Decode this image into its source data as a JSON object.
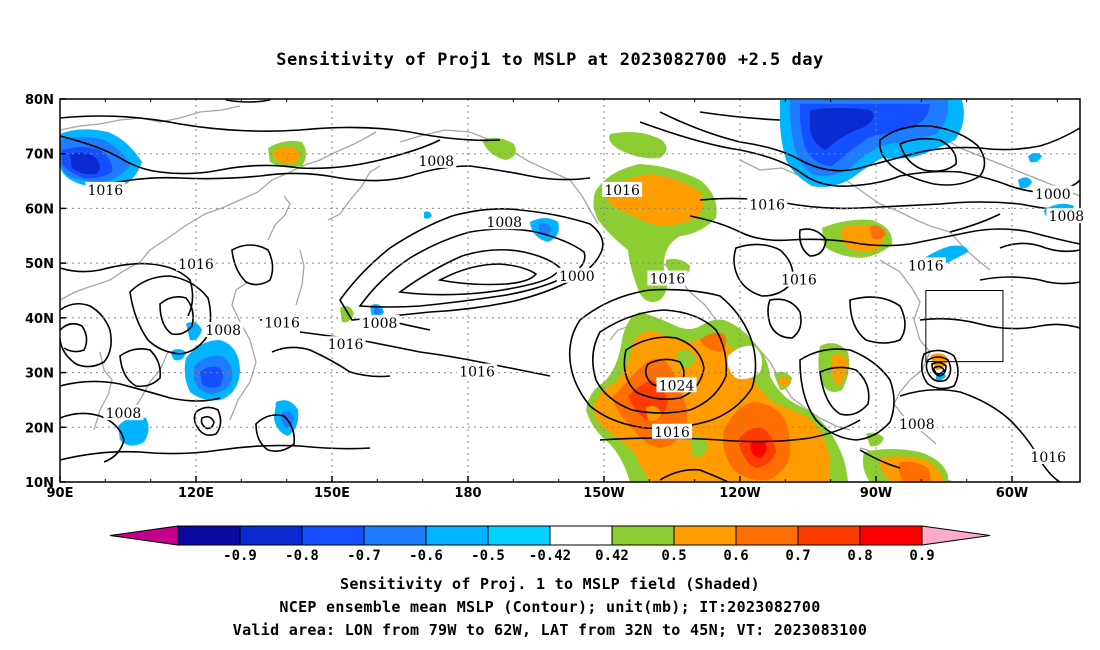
{
  "title": "Sensitivity of Proj1 to MSLP at 2023082700 +2.5 day",
  "axes": {
    "lon_ticks": [
      "90E",
      "120E",
      "150E",
      "180",
      "150W",
      "120W",
      "90W",
      "60W"
    ],
    "lat_ticks": [
      "80N",
      "70N",
      "60N",
      "50N",
      "40N",
      "30N",
      "20N",
      "10N"
    ],
    "lon_range": [
      90,
      315
    ],
    "lat_range": [
      10,
      80
    ],
    "grid": "dotted"
  },
  "contour_labels": [
    {
      "text": "1008",
      "lon": 173,
      "lat": 68.5
    },
    {
      "text": "1016",
      "lon": 100,
      "lat": 63.2
    },
    {
      "text": "1016",
      "lon": 214,
      "lat": 63.2
    },
    {
      "text": "1016",
      "lon": 246,
      "lat": 60.5
    },
    {
      "text": "1000",
      "lon": 309,
      "lat": 62.5
    },
    {
      "text": "1008",
      "lon": 312,
      "lat": 58.4
    },
    {
      "text": "1008",
      "lon": 188,
      "lat": 57.3
    },
    {
      "text": "1016",
      "lon": 120,
      "lat": 49.7
    },
    {
      "text": "1000",
      "lon": 204,
      "lat": 47.5
    },
    {
      "text": "1016",
      "lon": 224,
      "lat": 47.0
    },
    {
      "text": "1016",
      "lon": 253,
      "lat": 46.8
    },
    {
      "text": "1016",
      "lon": 281,
      "lat": 49.4
    },
    {
      "text": "1016",
      "lon": 139,
      "lat": 39.0
    },
    {
      "text": "1008",
      "lon": 160.5,
      "lat": 38.9
    },
    {
      "text": "1008",
      "lon": 126,
      "lat": 37.6
    },
    {
      "text": "1016",
      "lon": 153,
      "lat": 35.0
    },
    {
      "text": "1016",
      "lon": 182,
      "lat": 30.0
    },
    {
      "text": "1024",
      "lon": 226,
      "lat": 27.5
    },
    {
      "text": "1008",
      "lon": 104,
      "lat": 22.4
    },
    {
      "text": "1008",
      "lon": 279,
      "lat": 20.4
    },
    {
      "text": "1016",
      "lon": 225,
      "lat": 19.0
    },
    {
      "text": "1016",
      "lon": 308,
      "lat": 14.4
    }
  ],
  "valid_box": {
    "lon": [
      281,
      298
    ],
    "lat": [
      32,
      45
    ]
  },
  "colorbar": {
    "labels": [
      "-0.9",
      "-0.8",
      "-0.7",
      "-0.6",
      "-0.5",
      "-0.42",
      "0.42",
      "0.5",
      "0.6",
      "0.7",
      "0.8",
      "0.9"
    ],
    "colors": [
      "#c4008c",
      "#0a0aa0",
      "#0a2ad2",
      "#1450ff",
      "#1e7dff",
      "#00b4ff",
      "#00d2ff",
      "#ffffff",
      "#8ccd32",
      "#ff9d00",
      "#ff6e00",
      "#ff3c00",
      "#ff0000",
      "#ffaacd"
    ]
  },
  "captions": [
    "Sensitivity of Proj. 1 to MSLP field (Shaded)",
    "NCEP ensemble mean MSLP (Contour); unit(mb); IT:2023082700",
    "Valid area: LON from 79W to 62W, LAT from 32N to 45N; VT: 2023083100"
  ]
}
